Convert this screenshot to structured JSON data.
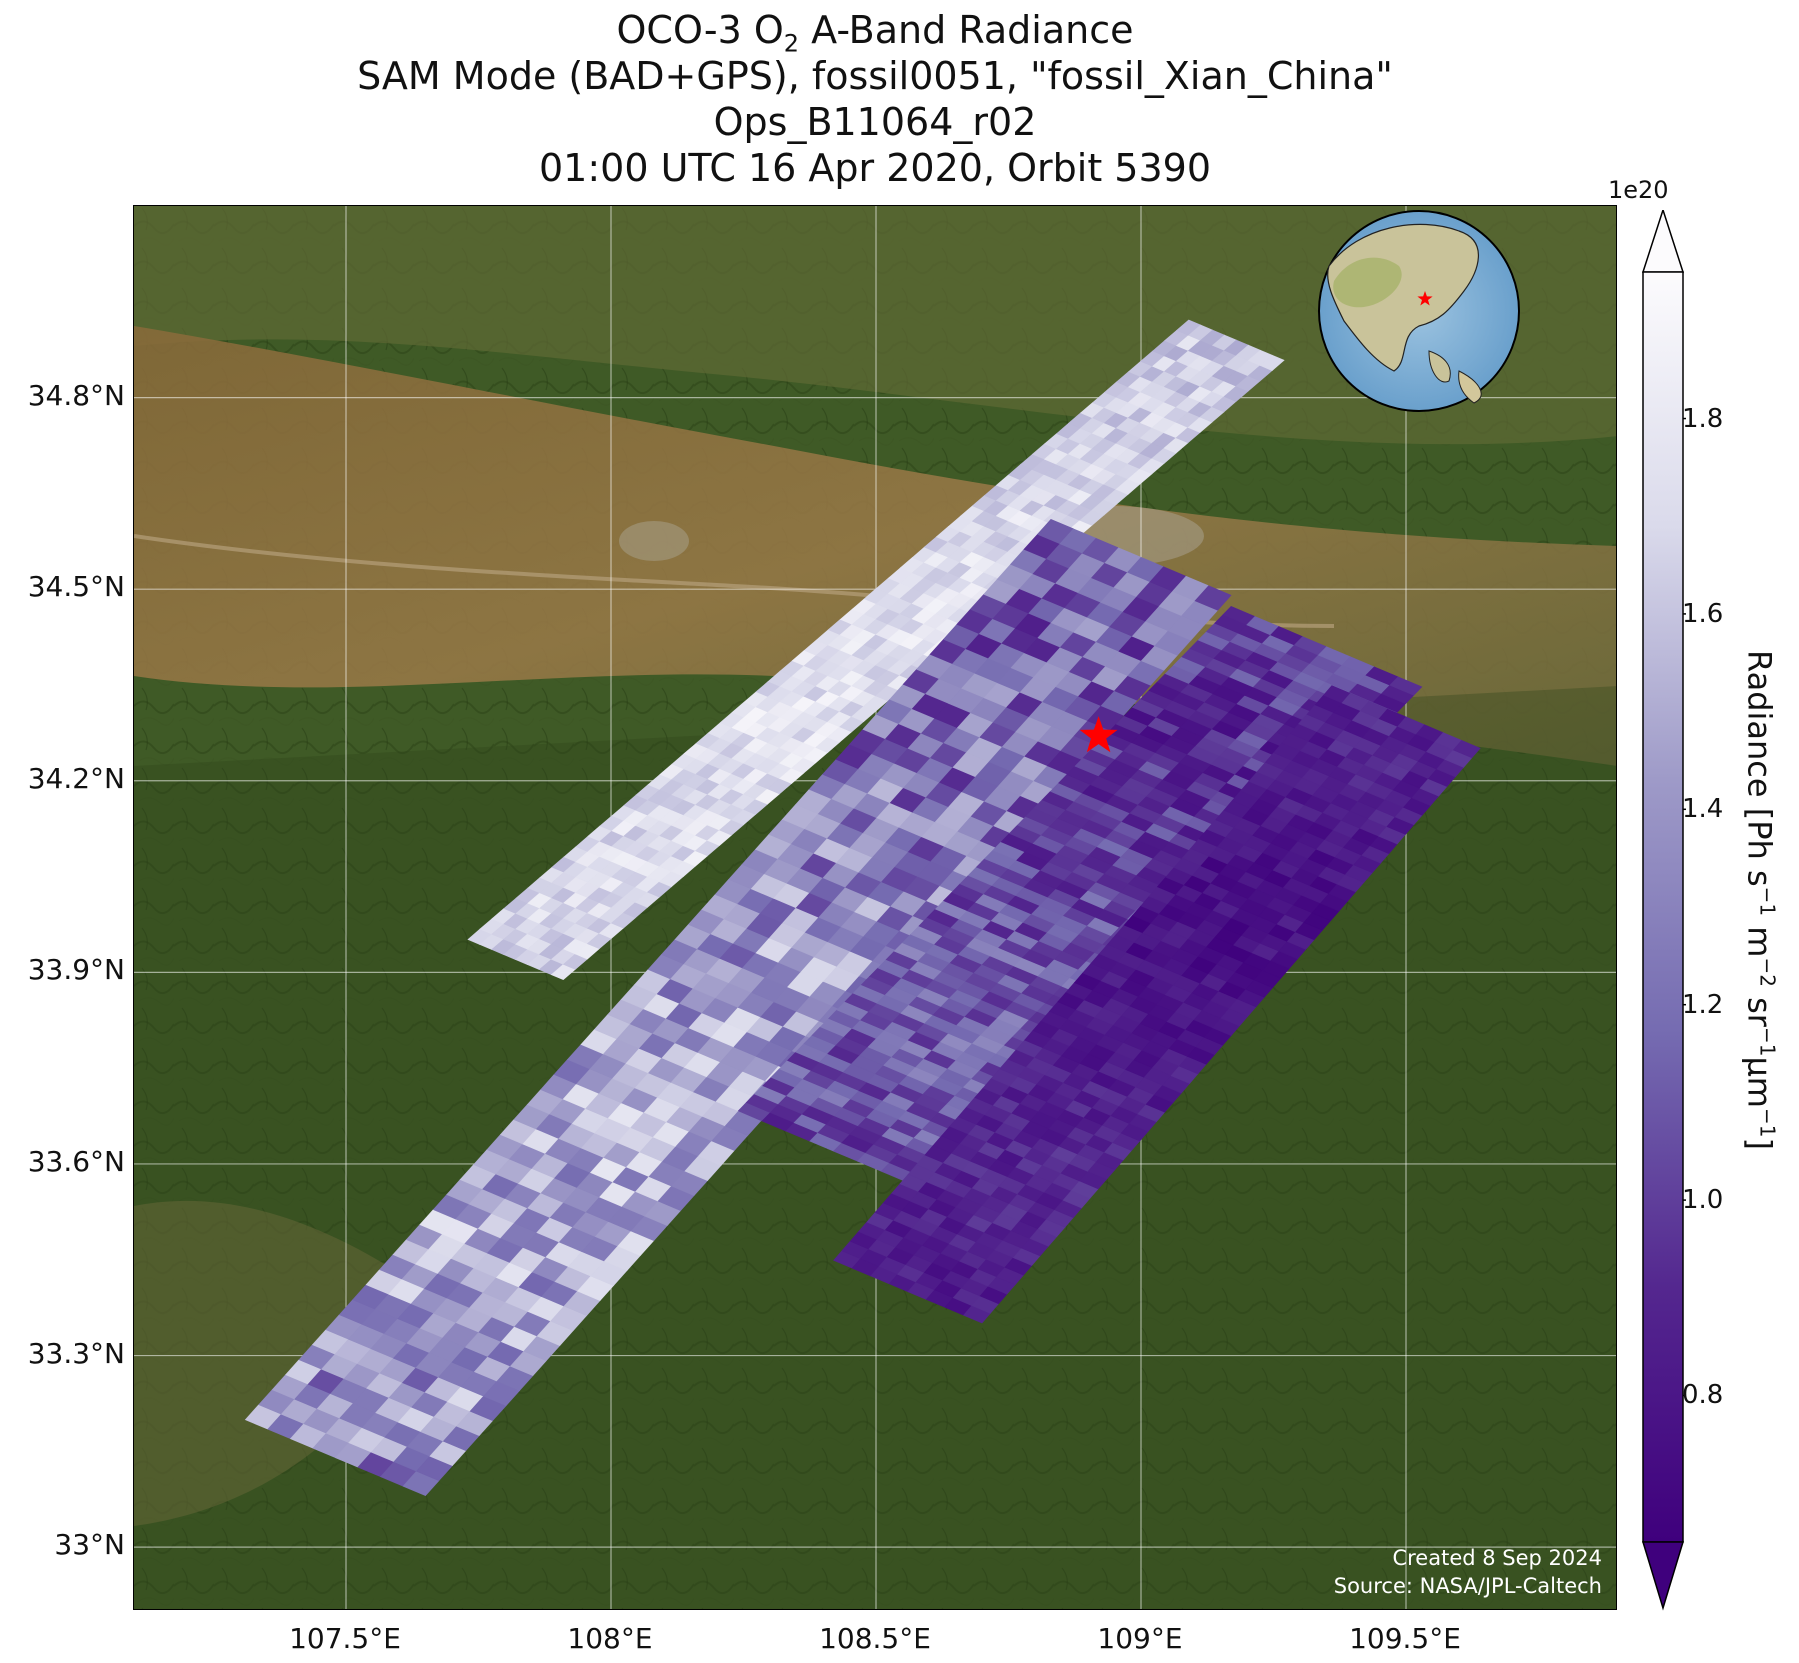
{
  "title": {
    "line1_prefix": "OCO-3 O",
    "line1_sub": "2",
    "line1_suffix": " A-Band Radiance",
    "line2": "SAM Mode (BAD+GPS), fossil0051, \"fossil_Xian_China\"",
    "line3": "Ops_B11064_r02",
    "line4": "01:00 UTC 16 Apr 2020, Orbit 5390"
  },
  "map": {
    "lon_range": [
      107.1,
      109.9
    ],
    "lat_range": [
      32.9,
      35.1
    ],
    "lat_ticks": [
      {
        "value": 34.8,
        "label": "34.8°N"
      },
      {
        "value": 34.5,
        "label": "34.5°N"
      },
      {
        "value": 34.2,
        "label": "34.2°N"
      },
      {
        "value": 33.9,
        "label": "33.9°N"
      },
      {
        "value": 33.6,
        "label": "33.6°N"
      },
      {
        "value": 33.3,
        "label": "33.3°N"
      },
      {
        "value": 33.0,
        "label": "33°N"
      }
    ],
    "lon_ticks": [
      {
        "value": 107.5,
        "label": "107.5°E"
      },
      {
        "value": 108.0,
        "label": "108°E"
      },
      {
        "value": 108.5,
        "label": "108.5°E"
      },
      {
        "value": 109.0,
        "label": "109°E"
      },
      {
        "value": 109.5,
        "label": "109.5°E"
      }
    ],
    "target_site": {
      "lon": 108.92,
      "lat": 34.27,
      "marker": "red-star-icon",
      "color": "#ff0000"
    },
    "basemap": "satellite imagery of the Qinling Mountains and Wei River valley",
    "credit_line1": "Created 8 Sep 2024",
    "credit_line2": "Source: NASA/JPL-Caltech",
    "inset_globe": {
      "marker": "red-star-icon",
      "center_region": "East Asia"
    }
  },
  "colorbar": {
    "label_main": "Radiance [Ph s",
    "label_exp1": "−1",
    "label_mid1": " m",
    "label_exp2": "−2",
    "label_mid2": " sr",
    "label_exp3": "−1",
    "label_mid3": "μm",
    "label_exp4": "−1",
    "label_end": "]",
    "exponent": "1e20",
    "range": [
      0.65,
      1.95
    ],
    "ticks": [
      {
        "value": 0.8,
        "label": "0.8"
      },
      {
        "value": 1.0,
        "label": "1.0"
      },
      {
        "value": 1.2,
        "label": "1.2"
      },
      {
        "value": 1.4,
        "label": "1.4"
      },
      {
        "value": 1.6,
        "label": "1.6"
      },
      {
        "value": 1.8,
        "label": "1.8"
      }
    ],
    "colormap": "Purples_r",
    "color_low": "#3f007d",
    "color_high": "#fcfbfd",
    "extend": "both"
  },
  "swaths": [
    {
      "name": "swath-1",
      "start": [
        107.82,
        33.92
      ],
      "end": [
        109.18,
        34.89
      ],
      "half_width_lon": 0.09,
      "radiance_low": 1.45,
      "radiance_high": 1.9
    },
    {
      "name": "swath-2",
      "start": [
        107.48,
        33.14
      ],
      "end": [
        109.0,
        34.55
      ],
      "half_width_lon": 0.17,
      "radiance_low": 0.85,
      "radiance_high": 1.8
    },
    {
      "name": "swath-3",
      "start": [
        108.42,
        33.62
      ],
      "end": [
        109.35,
        34.41
      ],
      "half_width_lon": 0.18,
      "radiance_low": 0.72,
      "radiance_high": 1.35
    },
    {
      "name": "swath-4",
      "start": [
        108.56,
        33.4
      ],
      "end": [
        109.5,
        34.3
      ],
      "half_width_lon": 0.14,
      "radiance_low": 0.66,
      "radiance_high": 1.0
    }
  ]
}
